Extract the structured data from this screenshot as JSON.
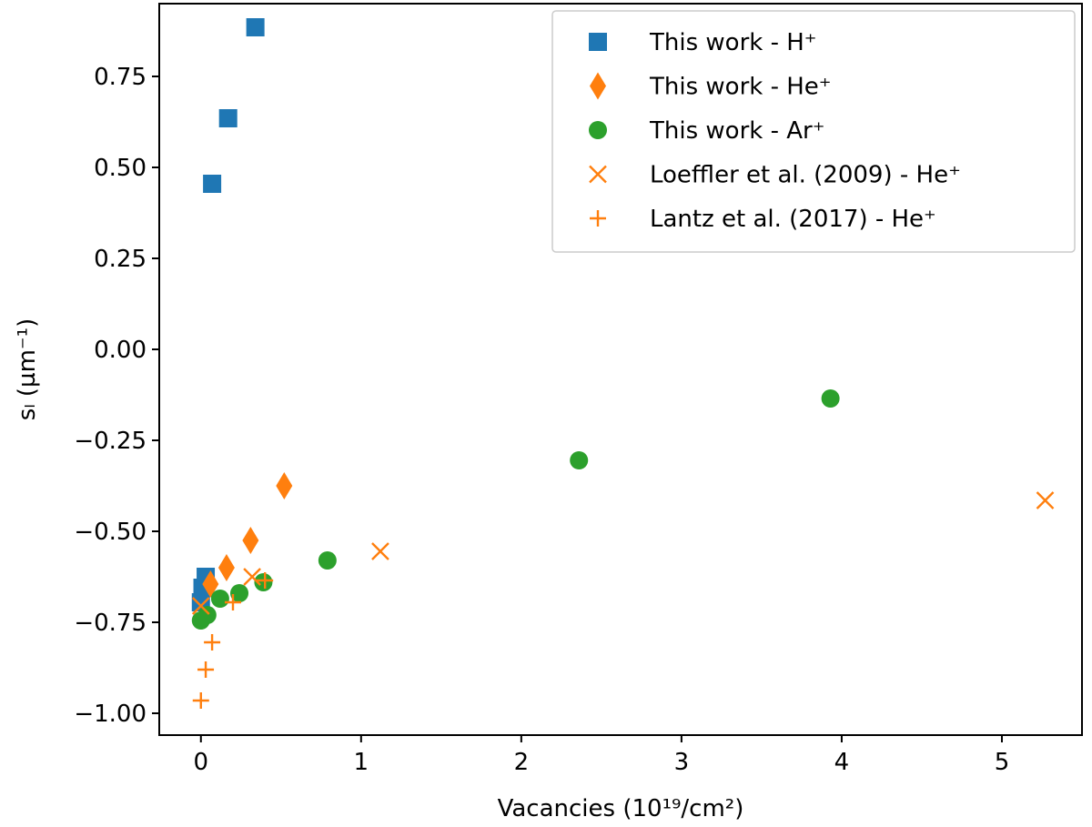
{
  "chart_data": {
    "type": "scatter",
    "xlabel": "Vacancies (10¹⁹/cm²)",
    "ylabel": "sₗ (µm⁻¹)",
    "xlim": [
      -0.26,
      5.5
    ],
    "ylim": [
      -1.06,
      0.95
    ],
    "xticks": [
      0,
      1,
      2,
      3,
      4,
      5
    ],
    "xtick_labels": [
      "0",
      "1",
      "2",
      "3",
      "4",
      "5"
    ],
    "yticks": [
      -1.0,
      -0.75,
      -0.5,
      -0.25,
      0.0,
      0.25,
      0.5,
      0.75
    ],
    "ytick_labels": [
      "−1.00",
      "−0.75",
      "−0.50",
      "−0.25",
      "0.00",
      "0.25",
      "0.50",
      "0.75"
    ],
    "grid": false,
    "legend_position": "top-right",
    "series": [
      {
        "name": "This work - H⁺",
        "marker": "square",
        "color": "#1f77b4",
        "x": [
          0.34,
          0.17,
          0.07,
          0.03,
          0.01,
          0.0
        ],
        "y": [
          0.885,
          0.635,
          0.455,
          -0.625,
          -0.655,
          -0.695
        ]
      },
      {
        "name": "This work - He⁺",
        "marker": "diamond",
        "color": "#ff7f0e",
        "x": [
          0.52,
          0.31,
          0.16,
          0.06
        ],
        "y": [
          -0.375,
          -0.525,
          -0.6,
          -0.645
        ]
      },
      {
        "name": "This work - Ar⁺",
        "marker": "circle",
        "color": "#2ca02c",
        "x": [
          3.93,
          2.36,
          0.79,
          0.39,
          0.24,
          0.12,
          0.04,
          0.0
        ],
        "y": [
          -0.135,
          -0.305,
          -0.58,
          -0.64,
          -0.67,
          -0.685,
          -0.73,
          -0.745
        ]
      },
      {
        "name": "Loeffler et al. (2009) - He⁺",
        "marker": "x",
        "color": "#ff7f0e",
        "x": [
          5.27,
          1.12,
          0.32,
          0.0
        ],
        "y": [
          -0.415,
          -0.555,
          -0.625,
          -0.705
        ]
      },
      {
        "name": "Lantz et al. (2017) - He⁺",
        "marker": "plus",
        "color": "#ff7f0e",
        "x": [
          0.4,
          0.2,
          0.07,
          0.03,
          0.0
        ],
        "y": [
          -0.635,
          -0.695,
          -0.805,
          -0.88,
          -0.965
        ]
      }
    ]
  }
}
